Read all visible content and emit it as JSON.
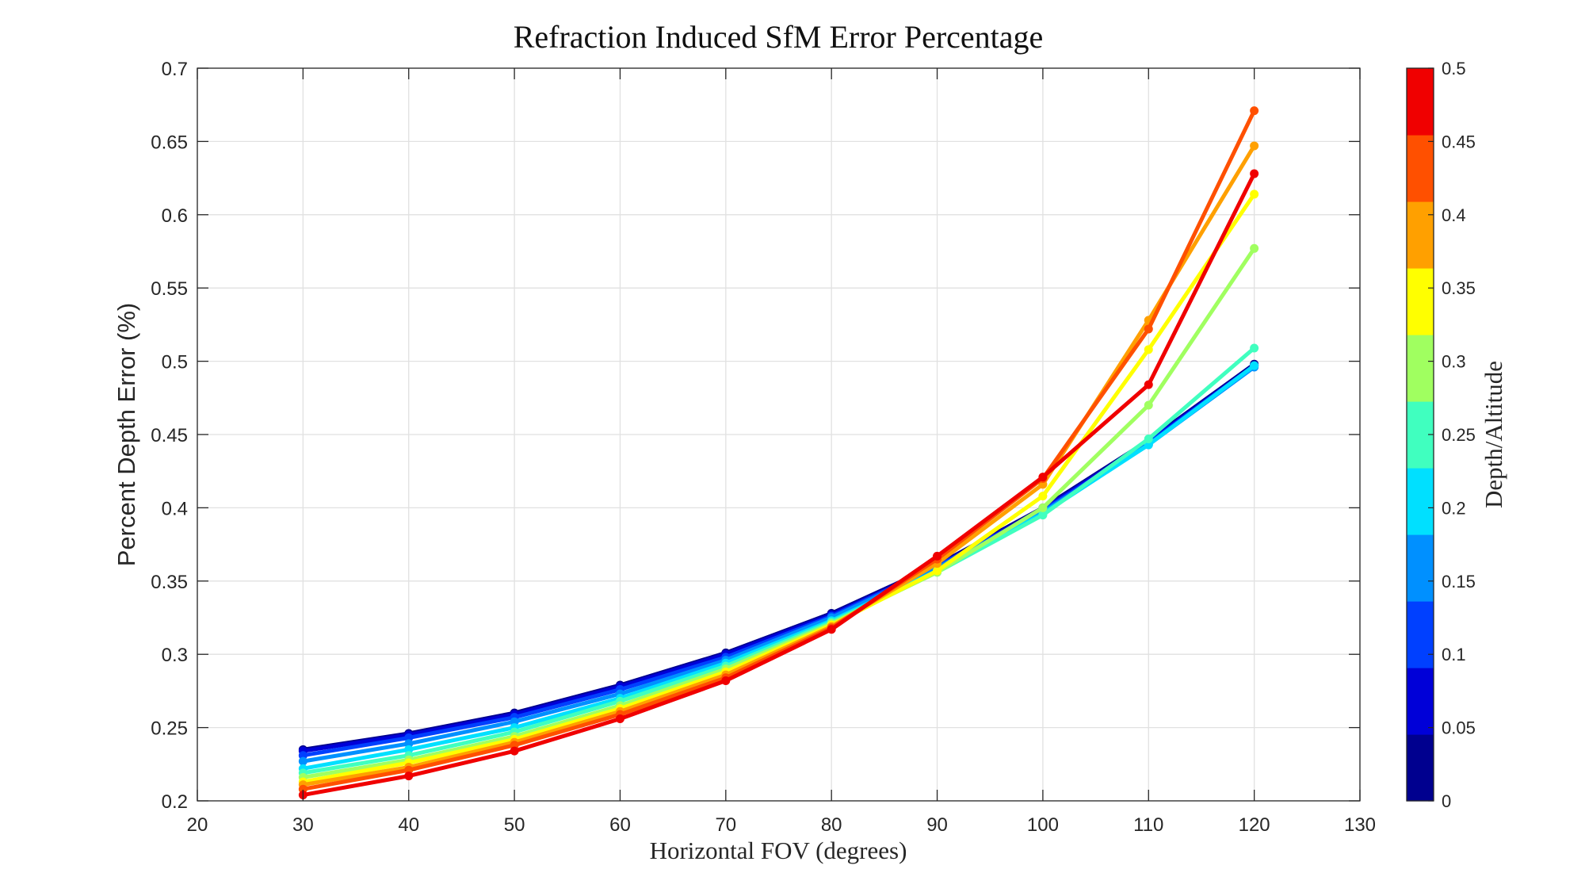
{
  "chart_data": {
    "type": "line",
    "title": "Refraction Induced SfM Error Percentage",
    "xlabel": "Horizontal FOV (degrees)",
    "ylabel": "Percent Depth Error (%)",
    "xlim": [
      20,
      130
    ],
    "ylim": [
      0.2,
      0.7
    ],
    "grid": true,
    "x_ticks": [
      20,
      30,
      40,
      50,
      60,
      70,
      80,
      90,
      100,
      110,
      120,
      130
    ],
    "y_ticks": [
      0.2,
      0.25,
      0.3,
      0.35,
      0.4,
      0.45,
      0.5,
      0.55,
      0.6,
      0.65,
      0.7
    ],
    "x": [
      30,
      40,
      50,
      60,
      70,
      80,
      90,
      100,
      110,
      120
    ],
    "series": [
      {
        "color": "#00008f",
        "values": [
          0.235,
          0.246,
          0.26,
          0.279,
          0.301,
          0.328,
          0.361,
          0.4,
          0.446,
          0.498
        ]
      },
      {
        "color": "#0000d8",
        "values": [
          0.234,
          0.245,
          0.259,
          0.278,
          0.3,
          0.327,
          0.36,
          0.399,
          0.445,
          0.497
        ]
      },
      {
        "color": "#0040ff",
        "values": [
          0.231,
          0.243,
          0.257,
          0.276,
          0.298,
          0.326,
          0.36,
          0.398,
          0.444,
          0.497
        ]
      },
      {
        "color": "#0090ff",
        "values": [
          0.227,
          0.239,
          0.254,
          0.273,
          0.296,
          0.325,
          0.359,
          0.397,
          0.443,
          0.496
        ]
      },
      {
        "color": "#00e0ff",
        "values": [
          0.222,
          0.235,
          0.25,
          0.27,
          0.294,
          0.323,
          0.357,
          0.396,
          0.443,
          0.497
        ]
      },
      {
        "color": "#40ffbf",
        "values": [
          0.219,
          0.231,
          0.247,
          0.268,
          0.292,
          0.322,
          0.356,
          0.395,
          0.447,
          0.509
        ]
      },
      {
        "color": "#a0ff60",
        "values": [
          0.216,
          0.228,
          0.244,
          0.265,
          0.29,
          0.321,
          0.356,
          0.4,
          0.47,
          0.577
        ]
      },
      {
        "color": "#ffff00",
        "values": [
          0.213,
          0.226,
          0.242,
          0.263,
          0.288,
          0.32,
          0.357,
          0.408,
          0.508,
          0.614
        ]
      },
      {
        "color": "#ffa000",
        "values": [
          0.211,
          0.223,
          0.24,
          0.261,
          0.286,
          0.319,
          0.362,
          0.416,
          0.528,
          0.647
        ]
      },
      {
        "color": "#ff5000",
        "values": [
          0.208,
          0.221,
          0.238,
          0.259,
          0.284,
          0.318,
          0.365,
          0.42,
          0.522,
          0.671
        ]
      },
      {
        "color": "#f00000",
        "values": [
          0.204,
          0.217,
          0.234,
          0.256,
          0.282,
          0.317,
          0.367,
          0.421,
          0.484,
          0.628
        ]
      }
    ],
    "colorbar": {
      "label": "Depth/Altitude",
      "range": [
        0,
        0.5
      ],
      "ticks": [
        0,
        0.05,
        0.1,
        0.15,
        0.2,
        0.25,
        0.3,
        0.35,
        0.4,
        0.45,
        0.5
      ],
      "colors": [
        "#00008f",
        "#0000d8",
        "#0040ff",
        "#0090ff",
        "#00e0ff",
        "#40ffbf",
        "#a0ff60",
        "#ffff00",
        "#ffa000",
        "#ff5000",
        "#f00000"
      ]
    }
  }
}
